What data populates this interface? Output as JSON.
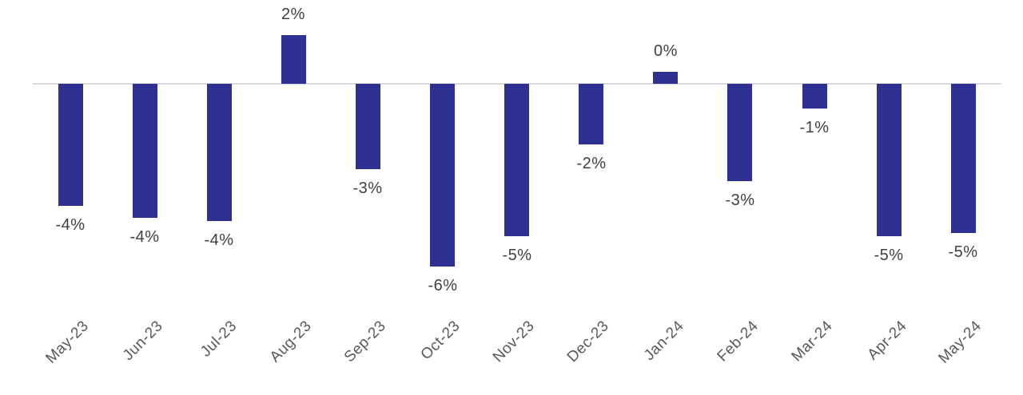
{
  "chart_data": {
    "type": "bar",
    "title": "",
    "xlabel": "",
    "ylabel": "",
    "unit": "%",
    "categories": [
      "May-23",
      "Jun-23",
      "Jul-23",
      "Aug-23",
      "Sep-23",
      "Oct-23",
      "Nov-23",
      "Dec-23",
      "Jan-24",
      "Feb-24",
      "Mar-24",
      "Apr-24",
      "May-24"
    ],
    "values": [
      -4.0,
      -4.4,
      -4.5,
      1.6,
      -2.8,
      -6.0,
      -5.0,
      -2.0,
      0.4,
      -3.2,
      -0.8,
      -5.0,
      -4.9
    ],
    "data_labels": [
      "-4%",
      "-4%",
      "-4%",
      "2%",
      "-3%",
      "-6%",
      "-5%",
      "-2%",
      "0%",
      "-3%",
      "-1%",
      "-5%",
      "-5%"
    ],
    "ylim": [
      -6.5,
      2.5
    ],
    "grid": false,
    "legend": "none",
    "gridlines_visible": false,
    "y_axis_visible": false,
    "colors": {
      "bar": "#2E3192",
      "axis_line": "#D9D9D9",
      "data_label": "#404040",
      "category_label": "#595959",
      "background": "#FFFFFF"
    }
  }
}
